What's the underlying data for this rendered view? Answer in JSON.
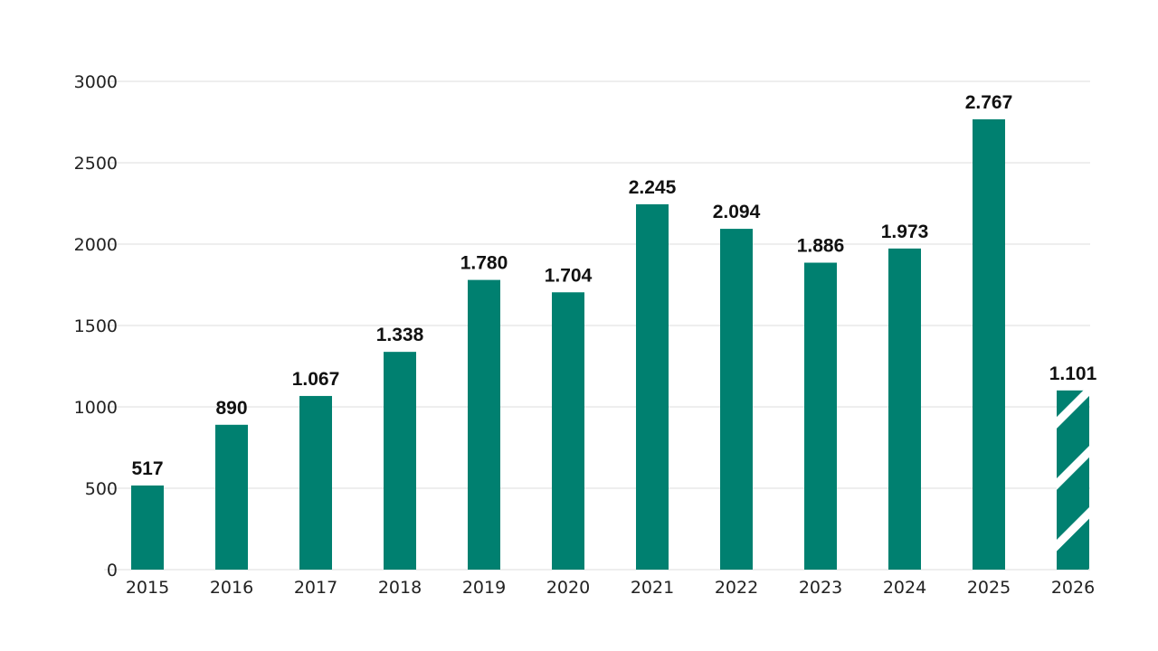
{
  "chart_data": {
    "type": "bar",
    "categories": [
      "2015",
      "2016",
      "2017",
      "2018",
      "2019",
      "2020",
      "2021",
      "2022",
      "2023",
      "2024",
      "2025",
      "2026"
    ],
    "values": [
      517,
      890,
      1067,
      1338,
      1780,
      1704,
      2245,
      2094,
      1886,
      1973,
      2767,
      1101
    ],
    "value_labels": [
      "517",
      "890",
      "1.067",
      "1.338",
      "1.780",
      "1.704",
      "2.245",
      "2.094",
      "1.886",
      "1.973",
      "2.767",
      "1.101"
    ],
    "hatched": [
      false,
      false,
      false,
      false,
      false,
      false,
      false,
      false,
      false,
      false,
      false,
      true
    ],
    "yticks": [
      0,
      500,
      1000,
      1500,
      2000,
      2500,
      3000
    ],
    "ylim": [
      0,
      3000
    ],
    "grid": true,
    "legend": "none",
    "title": "",
    "xlabel": "",
    "ylabel": "",
    "colors": {
      "bar": "#008070",
      "grid": "#dedede",
      "text": "#222222",
      "hatch_stripe": "#ffffff"
    }
  }
}
